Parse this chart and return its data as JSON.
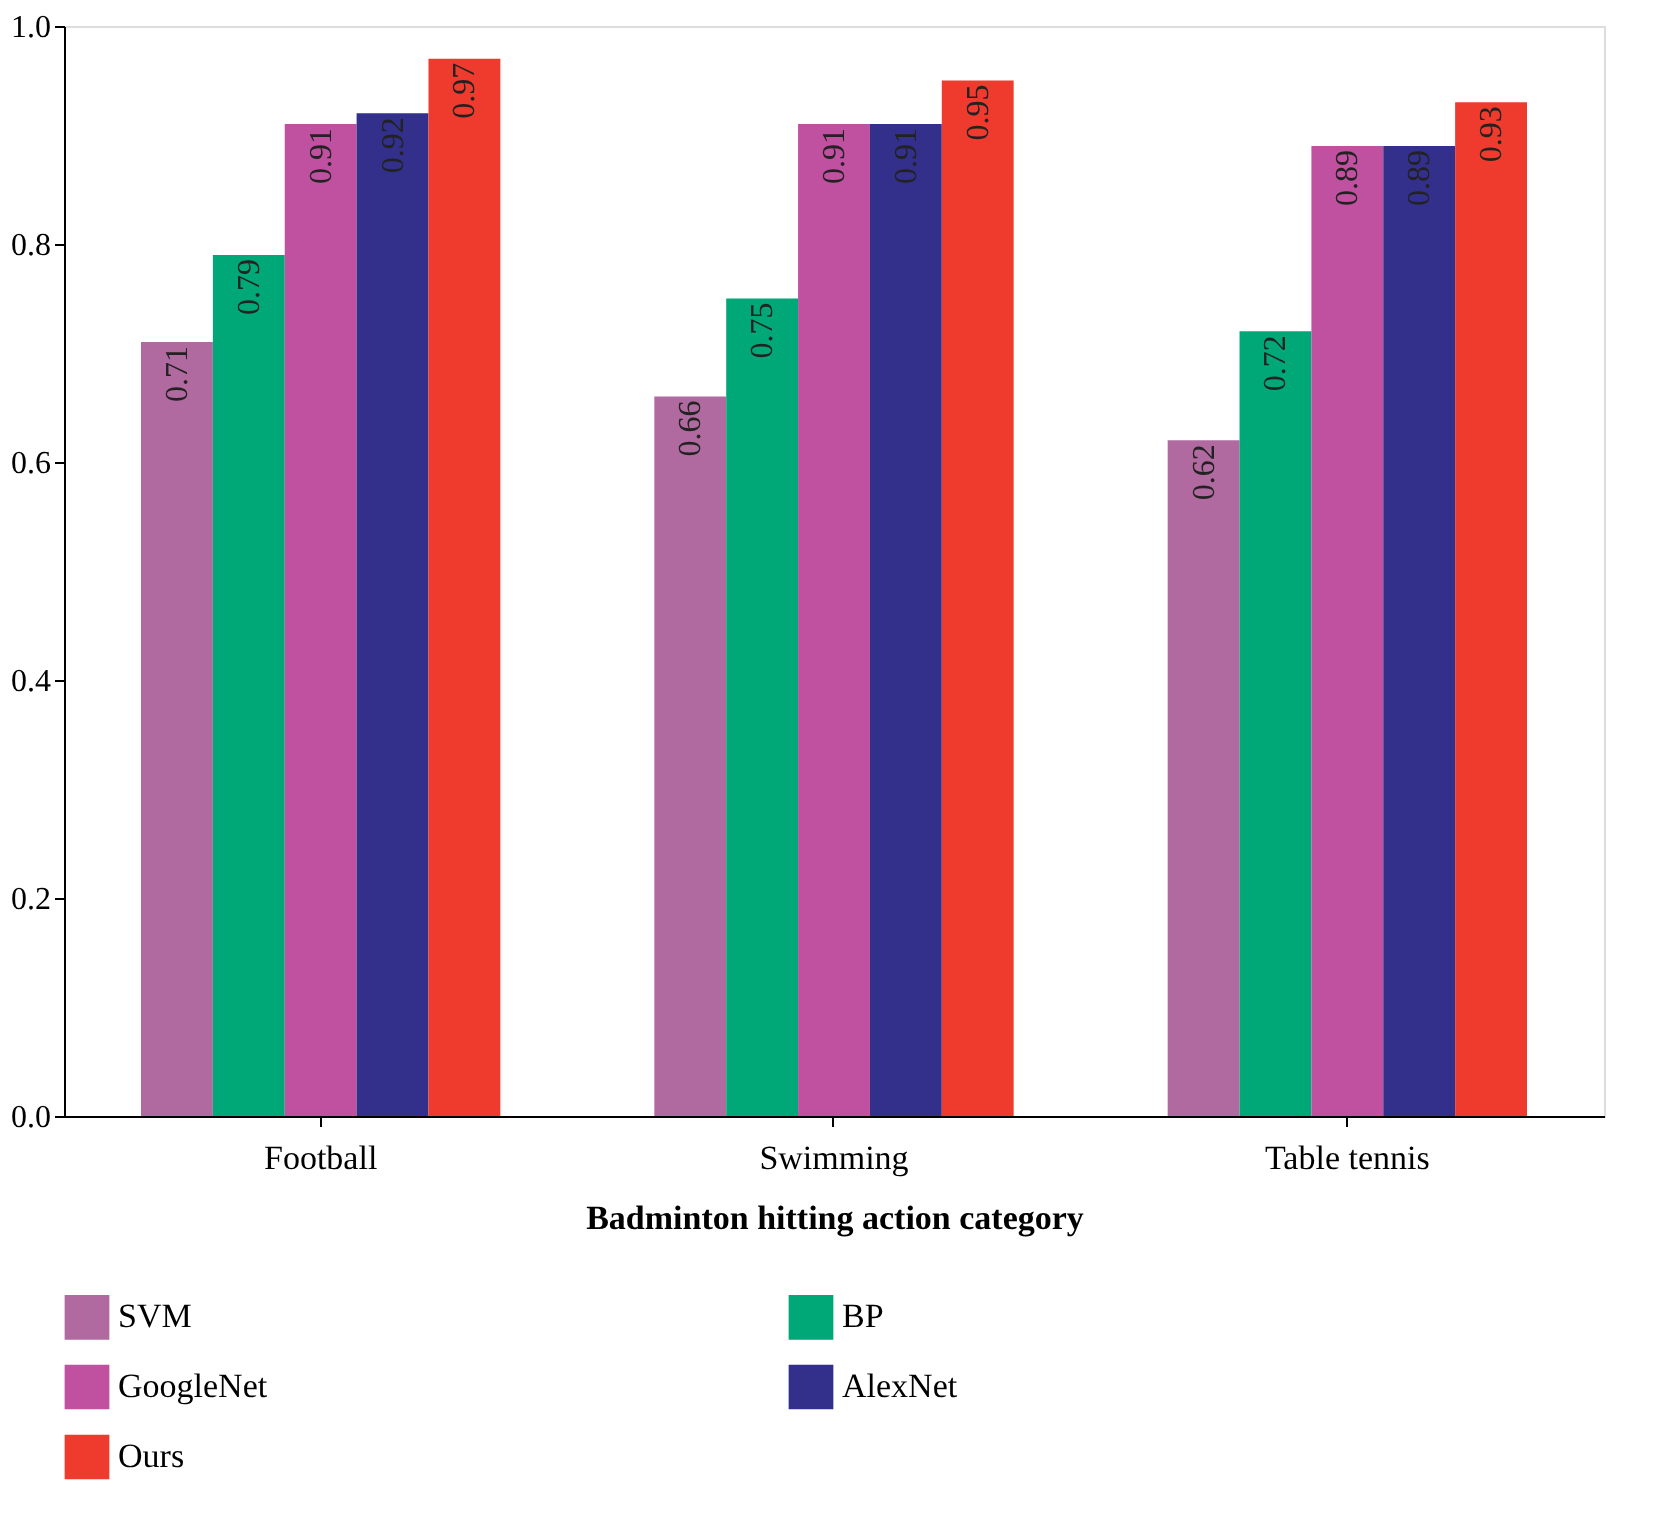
{
  "chart_data": {
    "type": "bar",
    "xlabel": "Badminton hitting action category",
    "categories": [
      "Football",
      "Swimming",
      "Table tennis"
    ],
    "series": [
      {
        "name": "SVM",
        "color": "#b06aa0",
        "values": [
          0.71,
          0.66,
          0.62
        ]
      },
      {
        "name": "BP",
        "color": "#00a878",
        "values": [
          0.79,
          0.75,
          0.72
        ]
      },
      {
        "name": "GoogleNet",
        "color": "#c050a0",
        "values": [
          0.91,
          0.91,
          0.89
        ]
      },
      {
        "name": "AlexNet",
        "color": "#33308c",
        "values": [
          0.92,
          0.91,
          0.89
        ]
      },
      {
        "name": "Ours",
        "color": "#ee3b2e",
        "values": [
          0.97,
          0.95,
          0.93
        ]
      }
    ],
    "ylim": [
      0.0,
      1.0
    ],
    "yticks": [
      {
        "value": 0,
        "label": "0.0"
      },
      0.2,
      0.4,
      0.6,
      0.8,
      {
        "value": 1,
        "label": "1.0"
      }
    ],
    "grid": false,
    "legend": "bottom",
    "data_labels": true
  }
}
